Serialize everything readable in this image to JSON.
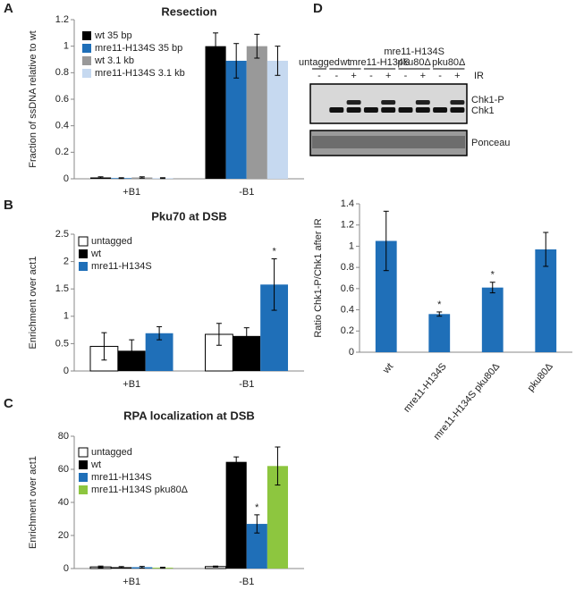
{
  "chart_data": [
    {
      "type": "bar",
      "panel_label": "A",
      "title": "Resection",
      "y_label": "Fraction of ssDNA relative to wt",
      "categories": [
        "+B1",
        "-B1"
      ],
      "ylim": [
        0,
        1.2
      ],
      "yticks": [
        0,
        0.2,
        0.4,
        0.6,
        0.8,
        1,
        1.2
      ],
      "grid": false,
      "legend": "top-left",
      "series": [
        {
          "name": "wt  35 bp",
          "color": "#000000",
          "values": [
            0.01,
            1.0
          ],
          "errors": [
            0.005,
            0.1
          ]
        },
        {
          "name": "mre11-H134S  35 bp",
          "color": "#1f6fb8",
          "values": [
            0.005,
            0.89
          ],
          "errors": [
            0.003,
            0.13
          ]
        },
        {
          "name": "wt  3.1 kb",
          "color": "#999999",
          "values": [
            0.01,
            1.0
          ],
          "errors": [
            0.005,
            0.09
          ]
        },
        {
          "name": "mre11-H134S  3.1 kb",
          "color": "#c6d9f0",
          "values": [
            0.005,
            0.89
          ],
          "errors": [
            0.003,
            0.11
          ]
        }
      ]
    },
    {
      "type": "bar",
      "panel_label": "B",
      "title": "Pku70 at DSB",
      "y_label": "Enrichment over act1",
      "categories": [
        "+B1",
        "-B1"
      ],
      "ylim": [
        0,
        2.5
      ],
      "yticks": [
        0,
        0.5,
        1,
        1.5,
        2,
        2.5
      ],
      "grid": false,
      "legend": "top-left",
      "series": [
        {
          "name": "untagged",
          "color": "#ffffff",
          "values": [
            0.45,
            0.67
          ],
          "errors": [
            0.25,
            0.2
          ],
          "markers": [
            null,
            null
          ]
        },
        {
          "name": "wt",
          "color": "#000000",
          "values": [
            0.37,
            0.64
          ],
          "errors": [
            0.2,
            0.15
          ],
          "markers": [
            null,
            null
          ]
        },
        {
          "name": "mre11-H134S",
          "color": "#1f6fb8",
          "values": [
            0.69,
            1.58
          ],
          "errors": [
            0.12,
            0.47
          ],
          "markers": [
            null,
            "*"
          ]
        }
      ]
    },
    {
      "type": "bar",
      "panel_label": "C",
      "title": "RPA localization at DSB",
      "y_label": "Enrichment over act1",
      "categories": [
        "+B1",
        "-B1"
      ],
      "ylim": [
        0,
        80
      ],
      "yticks": [
        0,
        20,
        40,
        60,
        80
      ],
      "grid": false,
      "legend": "top-left",
      "series": [
        {
          "name": "untagged",
          "color": "#ffffff",
          "values": [
            1,
            1.2
          ],
          "errors": [
            0.5,
            0.3
          ],
          "markers": [
            null,
            null
          ]
        },
        {
          "name": "wt",
          "color": "#000000",
          "values": [
            0.8,
            64.5
          ],
          "errors": [
            0.4,
            3
          ],
          "markers": [
            null,
            null
          ]
        },
        {
          "name": "mre11-H134S",
          "color": "#1f6fb8",
          "values": [
            0.8,
            27
          ],
          "errors": [
            0.5,
            5.5
          ],
          "markers": [
            null,
            "*"
          ]
        },
        {
          "name": "mre11-H134S pku80Δ",
          "color": "#8dc63f",
          "values": [
            0.5,
            62
          ],
          "errors": [
            0.3,
            11.5
          ],
          "markers": [
            null,
            null
          ]
        }
      ]
    },
    {
      "type": "bar",
      "panel_label": "D",
      "y_label": "Ratio Chk1-P/Chk1 after IR",
      "categories": [
        "wt",
        "mre11-H134S",
        "mre11-H134S pku80Δ",
        "pku80Δ"
      ],
      "color": "#1f6fb8",
      "values": [
        1.05,
        0.36,
        0.61,
        0.97
      ],
      "errors": [
        0.28,
        0.02,
        0.05,
        0.16
      ],
      "markers": [
        null,
        "*",
        "*",
        null
      ],
      "ylim": [
        0,
        1.4
      ],
      "yticks": [
        0,
        0.2,
        0.4,
        0.6,
        0.8,
        1,
        1.2,
        1.4
      ],
      "grid": false
    }
  ],
  "blot": {
    "lanes": [
      "untagged",
      "wt",
      "mre11-H134S",
      [
        "mre11-H134S",
        "pku80Δ"
      ],
      "pku80Δ"
    ],
    "ir_label": "IR",
    "ir_states": [
      "-",
      "-",
      "+",
      "-",
      "+",
      "-",
      "+",
      "-",
      "+"
    ],
    "band_labels": [
      "Chk1-P",
      "Chk1"
    ],
    "loading_label": "Ponceau"
  }
}
